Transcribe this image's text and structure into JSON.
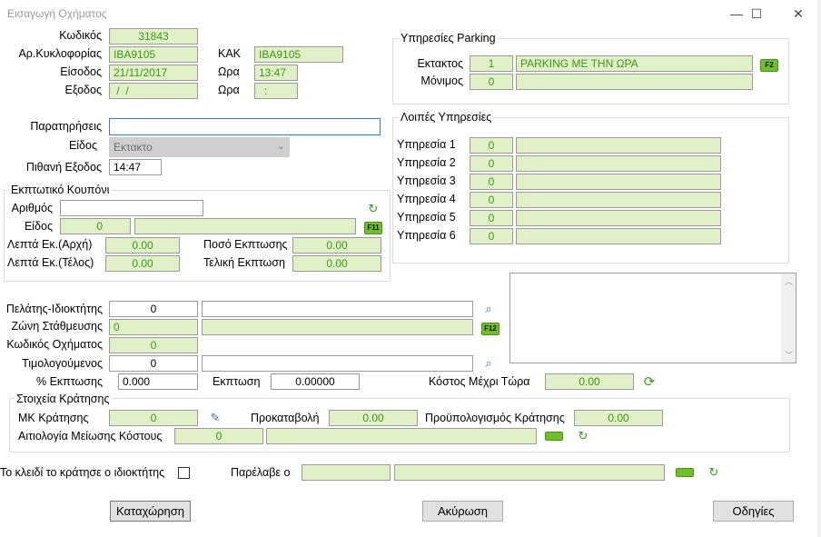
{
  "window": {
    "title": "Εισαγωγή Οχήματος",
    "minimize": "—",
    "maximize": "☐",
    "close": "✕"
  },
  "vehicle": {
    "code_label": "Κωδικός",
    "code": "31843",
    "plate_label": "Αρ.Κυκλοφορίας",
    "plate": "ΙΒΑ9105",
    "kak_label": "ΚΑΚ",
    "kak": "ΙΒΑ9105",
    "entry_label": "Είσοδος",
    "entry_date": "21/11/2017",
    "entry_time_label": "Ωρα",
    "entry_time": "13:47",
    "exit_label": "Εξοδος",
    "exit_date": " /  /",
    "exit_time_label": "Ωρα",
    "exit_time": ":",
    "notes_label": "Παρατηρήσεις",
    "notes": "",
    "type_label": "Είδος",
    "type": "Εκτακτο",
    "probable_exit_label": "Πιθανή Εξοδος",
    "probable_exit": "14:47"
  },
  "coupon": {
    "title": "Εκπτωτικό Κουπόνι",
    "number_label": "Αριθμός",
    "number": "",
    "kind_label": "Είδος",
    "kind_code": "0",
    "kind_name": "",
    "kind_key": "F11",
    "min_start_label": "Λεπτά Εκ.(Αρχή)",
    "min_start": "0.00",
    "min_end_label": "Λεπτά Εκ.(Τέλος)",
    "min_end": "0.00",
    "discount_amount_label": "Ποσό Εκπτωσης",
    "discount_amount": "0.00",
    "final_discount_label": "Τελική Εκπτωση",
    "final_discount": "0.00"
  },
  "parking": {
    "title": "Υπηρεσίες Parking",
    "extra_label": "Εκτακτος",
    "extra_code": "1",
    "extra_name": "PARKING ΜΕ ΤΗΝ ΩΡΑ",
    "extra_key": "F2",
    "permanent_label": "Μόνιμος",
    "permanent_code": "0",
    "permanent_name": ""
  },
  "other_services": {
    "title": "Λοιπές Υπηρεσίες",
    "items": [
      {
        "label": "Υπηρεσία 1",
        "code": "0",
        "name": ""
      },
      {
        "label": "Υπηρεσία 2",
        "code": "0",
        "name": ""
      },
      {
        "label": "Υπηρεσία 3",
        "code": "0",
        "name": ""
      },
      {
        "label": "Υπηρεσία 4",
        "code": "0",
        "name": ""
      },
      {
        "label": "Υπηρεσία 5",
        "code": "0",
        "name": ""
      },
      {
        "label": "Υπηρεσία 6",
        "code": "0",
        "name": ""
      }
    ]
  },
  "customer": {
    "owner_label": "Πελάτης-Ιδιοκτήτης",
    "owner_code": "0",
    "owner_name": "",
    "zone_label": "Ζώνη Στάθμευσης",
    "zone_code": "0",
    "zone_name": "",
    "zone_key": "F12",
    "vehicle_code_label": "Κωδικός Οχήματος",
    "vehicle_code": "0",
    "invoiced_label": "Τιμολογούμενος",
    "invoiced_code": "0",
    "invoiced_name": "",
    "discount_pct_label": "% Εκπτωσης",
    "discount_pct": "0.000",
    "discount_label": "Εκπτωση",
    "discount": "0.00000",
    "cost_label": "Κόστος Μέχρι Τώρα",
    "cost": "0.00",
    "memo": ""
  },
  "reservation": {
    "title": "Στοιχεία Κράτησης",
    "mk_label": "ΜΚ Κράτησης",
    "mk": "0",
    "deposit_label": "Προκαταβολή",
    "deposit": "0.00",
    "budget_label": "Προϋπολογισμός Κράτησης",
    "budget": "0.00",
    "reduction_label": "Αιτιολογία Μείωσης Κόστους",
    "reduction_code": "0",
    "reduction_text": ""
  },
  "footer": {
    "key_kept_label": "Το κλειδί το κράτησε ο ιδιοκτήτης",
    "received_label": "Παρέλαβε ο",
    "received_code": "",
    "received_name": "",
    "save": "Καταχώρηση",
    "cancel": "Ακύρωση",
    "instructions": "Οδηγίες"
  },
  "colors": {
    "field_bg": "#e2f0c8",
    "field_text": "#3a9a1a",
    "fkey_bg": "#6fbf2b"
  }
}
